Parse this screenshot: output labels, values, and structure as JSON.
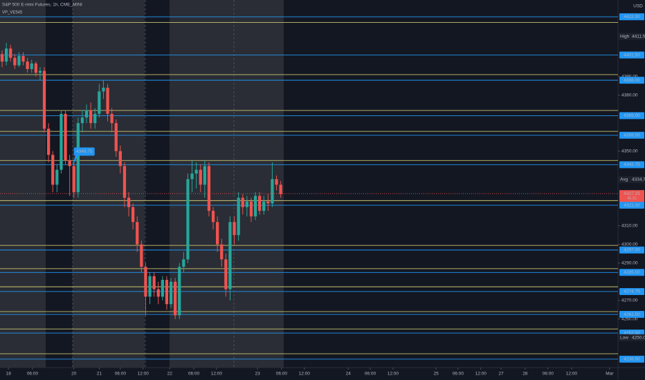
{
  "chart_data": {
    "type": "candlestick",
    "title": "S&P 500 E-mini Futures, 1h, CME_MINI",
    "subtitle": "VP_VE545",
    "currency": "USD",
    "up_color": "#26a69a",
    "down_color": "#ef5350",
    "open": [
      4402,
      4398,
      4405,
      4400,
      4396,
      4401,
      4398,
      4394,
      4397,
      4392,
      4393,
      4362,
      4348,
      4332,
      4340,
      4370,
      4345,
      4342,
      4328,
      4365,
      4368,
      4372,
      4365,
      4370,
      4382,
      4384,
      4370,
      4365,
      4350,
      4342,
      4325,
      4320,
      4312,
      4300,
      4288,
      4272,
      4283,
      4276,
      4272,
      4281,
      4268,
      4280,
      4262,
      4288,
      4292,
      4335,
      4338,
      4340,
      4332,
      4342,
      4318,
      4312,
      4300,
      4292,
      4276,
      4312,
      4305,
      4325,
      4320,
      4323,
      4315,
      4326,
      4318,
      4323,
      4322,
      4335,
      4332
    ],
    "high": [
      4404,
      4408,
      4407,
      4402,
      4403,
      4403,
      4400,
      4399,
      4398,
      4395,
      4395,
      4365,
      4350,
      4343,
      4372,
      4372,
      4348,
      4345,
      4368,
      4372,
      4375,
      4376,
      4373,
      4386,
      4388,
      4386,
      4373,
      4367,
      4353,
      4344,
      4328,
      4322,
      4315,
      4302,
      4290,
      4285,
      4285,
      4280,
      4283,
      4283,
      4282,
      4282,
      4290,
      4296,
      4338,
      4345,
      4344,
      4343,
      4345,
      4344,
      4320,
      4315,
      4303,
      4295,
      4315,
      4315,
      4328,
      4327,
      4326,
      4325,
      4328,
      4328,
      4326,
      4327,
      4344,
      4337,
      4334
    ],
    "low": [
      4395,
      4396,
      4398,
      4394,
      4395,
      4396,
      4392,
      4392,
      4390,
      4388,
      4360,
      4344,
      4328,
      4328,
      4338,
      4343,
      4326,
      4325,
      4325,
      4360,
      4365,
      4362,
      4362,
      4368,
      4378,
      4366,
      4360,
      4347,
      4338,
      4320,
      4315,
      4308,
      4296,
      4285,
      4262,
      4268,
      4272,
      4268,
      4270,
      4265,
      4266,
      4260,
      4260,
      4285,
      4290,
      4328,
      4330,
      4328,
      4325,
      4315,
      4308,
      4296,
      4288,
      4272,
      4270,
      4300,
      4302,
      4316,
      4315,
      4312,
      4313,
      4316,
      4316,
      4318,
      4320,
      4329,
      4325
    ],
    "close": [
      4398,
      4405,
      4400,
      4396,
      4401,
      4398,
      4394,
      4397,
      4392,
      4393,
      4362,
      4348,
      4332,
      4340,
      4370,
      4345,
      4342,
      4328,
      4365,
      4368,
      4372,
      4365,
      4370,
      4382,
      4384,
      4370,
      4365,
      4350,
      4342,
      4325,
      4320,
      4312,
      4300,
      4288,
      4272,
      4283,
      4276,
      4272,
      4281,
      4268,
      4280,
      4262,
      4288,
      4292,
      4335,
      4338,
      4340,
      4332,
      4342,
      4318,
      4312,
      4300,
      4292,
      4276,
      4312,
      4305,
      4325,
      4320,
      4323,
      4315,
      4326,
      4318,
      4323,
      4322,
      4335,
      4332,
      4327
    ],
    "xlim": [
      -0.5,
      145.9
    ],
    "xticks": [
      {
        "value": 1.5,
        "label": "18"
      },
      {
        "value": 7.2,
        "label": "06:00"
      },
      {
        "value": 17,
        "label": "20"
      },
      {
        "value": 23,
        "label": "21"
      },
      {
        "value": 28,
        "label": "06:00"
      },
      {
        "value": 33.4,
        "label": "12:00"
      },
      {
        "value": 39.7,
        "label": "22"
      },
      {
        "value": 45.4,
        "label": "06:00"
      },
      {
        "value": 50.8,
        "label": "12:00"
      },
      {
        "value": 60.5,
        "label": "23"
      },
      {
        "value": 66.2,
        "label": "06:00"
      },
      {
        "value": 71.6,
        "label": "12:00"
      },
      {
        "value": 82,
        "label": "24"
      },
      {
        "value": 87.2,
        "label": "06:00"
      },
      {
        "value": 92.6,
        "label": "12:00"
      },
      {
        "value": 102.8,
        "label": "25"
      },
      {
        "value": 108,
        "label": "06:00"
      },
      {
        "value": 113.4,
        "label": "12:00"
      },
      {
        "value": 118.2,
        "label": "27"
      },
      {
        "value": 123.9,
        "label": "28"
      },
      {
        "value": 129.3,
        "label": "06:00"
      },
      {
        "value": 134.9,
        "label": "12:00"
      },
      {
        "value": 143.9,
        "label": "Mar"
      }
    ],
    "ylim": [
      4234,
      4431
    ],
    "yticks": [
      {
        "value": 4260,
        "label": "4260.00"
      },
      {
        "value": 4270,
        "label": "4270.00"
      },
      {
        "value": 4290,
        "label": "4290.00"
      },
      {
        "value": 4300,
        "label": "4300.00"
      },
      {
        "value": 4310,
        "label": "4310.00"
      },
      {
        "value": 4350,
        "label": "4350.00"
      },
      {
        "value": 4380,
        "label": "4380.00"
      },
      {
        "value": 4390,
        "label": "4390.00"
      }
    ],
    "levels": [
      {
        "value": 4422,
        "label": "4422.00"
      },
      {
        "value": 4401.5,
        "label": "4401.50"
      },
      {
        "value": 4388,
        "label": "4388.00"
      },
      {
        "value": 4369,
        "label": "4369.00"
      },
      {
        "value": 4358.5,
        "label": "4358.50"
      },
      {
        "value": 4342.75,
        "label": "4342.75"
      },
      {
        "value": 4321,
        "label": "4321.00"
      },
      {
        "value": 4297,
        "label": "4297.00"
      },
      {
        "value": 4285,
        "label": "4285.00"
      },
      {
        "value": 4274.75,
        "label": "4274.75"
      },
      {
        "value": 4262.5,
        "label": "4262.50"
      },
      {
        "value": 4252.5,
        "label": "4252.50"
      },
      {
        "value": 4238.5,
        "label": "4238.50"
      }
    ],
    "level_color": "#2196f3",
    "secondary_levels": [
      4419,
      4391,
      4371.8,
      4360.6,
      4345,
      4323.5,
      4299.5,
      4287,
      4277.3,
      4264,
      4254.7,
      4241.4
    ],
    "secondary_color": "#e6df7a",
    "markers": [
      {
        "name": "High",
        "value": 4411.5,
        "label": "4411.50"
      },
      {
        "name": "Avg",
        "value": 4334.75,
        "label": "4334.75"
      },
      {
        "name": "Low",
        "value": 4250,
        "label": "4250.00"
      }
    ],
    "last_price": {
      "value": 4327.25,
      "label": "4327.25",
      "countdown": "45:31"
    },
    "callout": {
      "index": 17,
      "value": 4349.75,
      "label": "4349.75"
    }
  }
}
